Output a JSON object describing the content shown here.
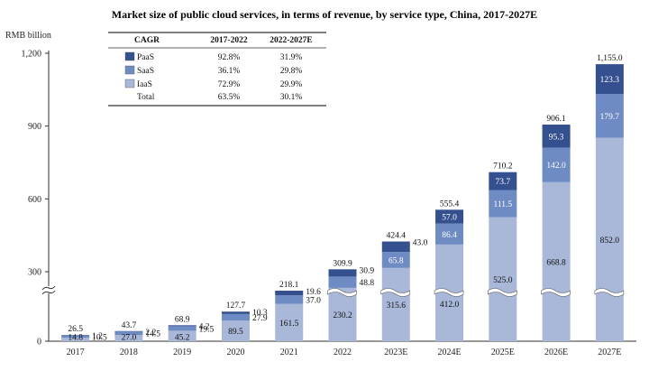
{
  "chart_data": {
    "type": "bar",
    "stacked": true,
    "title": "Market size of public cloud services, in terms of revenue, by service type, China, 2017-2027E",
    "ylabel": "RMB billion",
    "yticks": [
      "0",
      "300",
      "600",
      "900",
      "1,200"
    ],
    "ylim": [
      0,
      1200
    ],
    "broken_axis": true,
    "categories": [
      "2017",
      "2018",
      "2019",
      "2020",
      "2021",
      "2022",
      "2023E",
      "2024E",
      "2025E",
      "2026E",
      "2027E"
    ],
    "series": [
      {
        "name": "IaaS",
        "color": "#a9b8d8",
        "values": [
          14.8,
          27.0,
          45.2,
          89.5,
          161.5,
          230.2,
          315.6,
          412.0,
          525.0,
          668.8,
          852.0
        ]
      },
      {
        "name": "SaaS",
        "color": "#6f8bc4",
        "values": [
          10.5,
          14.5,
          19.5,
          27.9,
          37.0,
          48.8,
          65.8,
          86.4,
          111.5,
          142.0,
          179.7
        ]
      },
      {
        "name": "PaaS",
        "color": "#34508e",
        "values": [
          1.2,
          2.2,
          4.2,
          10.3,
          19.6,
          30.9,
          43.0,
          57.0,
          73.7,
          95.3,
          123.3
        ]
      }
    ],
    "totals": [
      "26.5",
      "43.7",
      "68.9",
      "127.7",
      "218.1",
      "309.9",
      "424.4",
      "555.4",
      "710.2",
      "906.1",
      "1,155.0"
    ],
    "label_text": {
      "IaaS": [
        "14.8",
        "27.0",
        "45.2",
        "89.5",
        "161.5",
        "230.2",
        "315.6",
        "412.0",
        "525.0",
        "668.8",
        "852.0"
      ],
      "SaaS": [
        "10.5",
        "14.5",
        "19.5",
        "27.9",
        "37.0",
        "48.8",
        "65.8",
        "86.4",
        "111.5",
        "142.0",
        "179.7"
      ],
      "PaaS": [
        "1.2",
        "2.2",
        "4.2",
        "10.3",
        "19.6",
        "30.9",
        "43.0",
        "57.0",
        "73.7",
        "95.3",
        "123.3"
      ]
    },
    "cagr_table": {
      "headers": [
        "CAGR",
        "2017-2022",
        "2022-2027E"
      ],
      "rows": [
        {
          "name": "PaaS",
          "color": "#34508e",
          "values": [
            "92.8%",
            "31.9%"
          ]
        },
        {
          "name": "SaaS",
          "color": "#6f8bc4",
          "values": [
            "36.1%",
            "29.8%"
          ]
        },
        {
          "name": "IaaS",
          "color": "#a9b8d8",
          "values": [
            "72.9%",
            "29.9%"
          ]
        },
        {
          "name": "Total",
          "color": "",
          "values": [
            "63.5%",
            "30.1%"
          ]
        }
      ]
    }
  }
}
